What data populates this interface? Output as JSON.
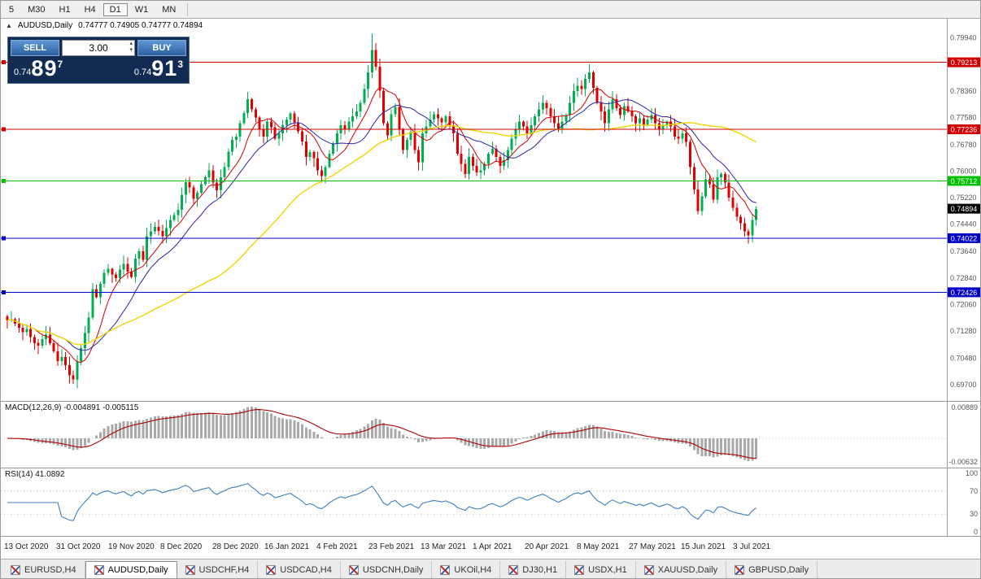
{
  "toolbar": {
    "timeframes": [
      "5",
      "M30",
      "H1",
      "H4",
      "D1",
      "W1",
      "MN"
    ],
    "active_timeframe": "D1"
  },
  "chart": {
    "collapse_icon": "▲",
    "title": "AUDUSD,Daily",
    "ohlc": "0.74777 0.74905 0.74777 0.74894",
    "current_price": "0.74894"
  },
  "one_click": {
    "sell_label": "SELL",
    "buy_label": "BUY",
    "volume": "3.00",
    "sell_price_base": "0.74",
    "sell_price_big": "89",
    "sell_price_sup": "7",
    "buy_price_base": "0.74",
    "buy_price_big": "91",
    "buy_price_sup": "3"
  },
  "macd": {
    "label": "MACD(12,26,9) -0.004891 -0.005115",
    "scale_top": "0.00889",
    "scale_bottom": "-0.00632"
  },
  "rsi": {
    "label": "RSI(14) 41.0892",
    "levels": [
      "100",
      "70",
      "30",
      "0"
    ]
  },
  "tabs": {
    "active": "AUDUSD,Daily",
    "items": [
      "EURUSD,H4",
      "AUDUSD,Daily",
      "USDCHF,H4",
      "USDCAD,H4",
      "USDCNH,Daily",
      "UKOil,H4",
      "DJ30,H1",
      "USDX,H1",
      "XAUUSD,Daily",
      "GBPUSD,Daily"
    ]
  },
  "chart_data": {
    "type": "candlestick",
    "symbol": "AUDUSD",
    "timeframe": "Daily",
    "ohlc_display": {
      "open": "0.74777",
      "high": "0.74905",
      "low": "0.74777",
      "close": "0.74894"
    },
    "price_max_view": 0.805,
    "price_min_view": 0.6922,
    "current_price": 0.74894,
    "y_ticks": [
      "0.79940",
      "0.79160",
      "0.78360",
      "0.77580",
      "0.76780",
      "0.76000",
      "0.75220",
      "0.74440",
      "0.73640",
      "0.72840",
      "0.72060",
      "0.71280",
      "0.70480",
      "0.69700"
    ],
    "x_labels": [
      "13 Oct 2020",
      "31 Oct 2020",
      "19 Nov 2020",
      "8 Dec 2020",
      "28 Dec 2020",
      "16 Jan 2021",
      "4 Feb 2021",
      "23 Feb 2021",
      "13 Mar 2021",
      "1 Apr 2021",
      "20 Apr 2021",
      "8 May 2021",
      "27 May 2021",
      "15 Jun 2021",
      "3 Jul 2021"
    ],
    "hlines": [
      {
        "value": 0.79213,
        "label": "0.79213",
        "color": "#d40000"
      },
      {
        "value": 0.77236,
        "label": "0.77236",
        "color": "#d40000"
      },
      {
        "value": 0.75712,
        "label": "0.75712",
        "color": "#00c000"
      },
      {
        "value": 0.74022,
        "label": "0.74022",
        "color": "#0000c8"
      },
      {
        "value": 0.72426,
        "label": "0.72426",
        "color": "#0000c8"
      }
    ],
    "moving_averages": [
      {
        "period": 8,
        "color": "#d40000"
      },
      {
        "period": 16,
        "color": "#2626a8"
      },
      {
        "period": 55,
        "color": "#efd600"
      }
    ],
    "candle_colors": {
      "up": "#00b050",
      "down": "#e00000"
    },
    "macd": {
      "params": [
        12,
        26,
        9
      ],
      "main": -0.004891,
      "signal": -0.005115,
      "scale_max": 0.00889,
      "scale_min": -0.00632,
      "histogram_color": "#a9a9a9",
      "signal_color": "#b00000"
    },
    "rsi": {
      "period": 14,
      "value": 41.0892,
      "line_color": "#3c7ebf",
      "levels": [
        100,
        70,
        30,
        0
      ]
    },
    "closes": [
      0.716,
      0.7163,
      0.715,
      0.7138,
      0.7125,
      0.7134,
      0.711,
      0.7093,
      0.7085,
      0.7104,
      0.7118,
      0.7092,
      0.7068,
      0.704,
      0.7052,
      0.7028,
      0.6998,
      0.6985,
      0.7038,
      0.7078,
      0.7122,
      0.7168,
      0.7252,
      0.7228,
      0.7268,
      0.73,
      0.7312,
      0.7295,
      0.7284,
      0.731,
      0.7326,
      0.7304,
      0.7288,
      0.7342,
      0.7364,
      0.7338,
      0.7408,
      0.7422,
      0.7436,
      0.7424,
      0.7408,
      0.7432,
      0.7456,
      0.747,
      0.7486,
      0.753,
      0.7568,
      0.7552,
      0.7518,
      0.7536,
      0.7562,
      0.7582,
      0.7602,
      0.7566,
      0.7544,
      0.7582,
      0.7612,
      0.7658,
      0.7692,
      0.7702,
      0.7742,
      0.7772,
      0.7812,
      0.7782,
      0.7758,
      0.7722,
      0.7702,
      0.7746,
      0.773,
      0.7696,
      0.7712,
      0.7736,
      0.7752,
      0.777,
      0.7744,
      0.7718,
      0.7688,
      0.7642,
      0.7656,
      0.7638,
      0.7602,
      0.7586,
      0.7612,
      0.7652,
      0.7682,
      0.7712,
      0.7736,
      0.7722,
      0.7746,
      0.7762,
      0.7776,
      0.7802,
      0.7842,
      0.7892,
      0.7958,
      0.7908,
      0.7838,
      0.7742,
      0.7706,
      0.7768,
      0.779,
      0.7722,
      0.7662,
      0.7692,
      0.7716,
      0.7662,
      0.7626,
      0.7712,
      0.7732,
      0.7752,
      0.7768,
      0.7756,
      0.7744,
      0.7762,
      0.7736,
      0.7712,
      0.7652,
      0.7622,
      0.7592,
      0.7642,
      0.7616,
      0.7596,
      0.7602,
      0.7622,
      0.7652,
      0.7666,
      0.7642,
      0.7616,
      0.7632,
      0.7662,
      0.7696,
      0.7722,
      0.7746,
      0.7732,
      0.7712,
      0.7736,
      0.7762,
      0.7782,
      0.7802,
      0.7786,
      0.7762,
      0.7742,
      0.7722,
      0.7746,
      0.7766,
      0.7802,
      0.7836,
      0.7852,
      0.7842,
      0.7872,
      0.7892,
      0.7846,
      0.7802,
      0.7776,
      0.7742,
      0.7782,
      0.7812,
      0.7786,
      0.7766,
      0.7792,
      0.7776,
      0.7762,
      0.7742,
      0.7756,
      0.7736,
      0.7752,
      0.7766,
      0.7742,
      0.7722,
      0.7736,
      0.7746,
      0.7732,
      0.7702,
      0.7696,
      0.7712,
      0.7686,
      0.7612,
      0.7546,
      0.7482,
      0.7526,
      0.7576,
      0.7562,
      0.7516,
      0.7582,
      0.7592,
      0.7566,
      0.7522,
      0.7492,
      0.7466,
      0.7446,
      0.7422,
      0.741,
      0.7456,
      0.7489
    ]
  }
}
